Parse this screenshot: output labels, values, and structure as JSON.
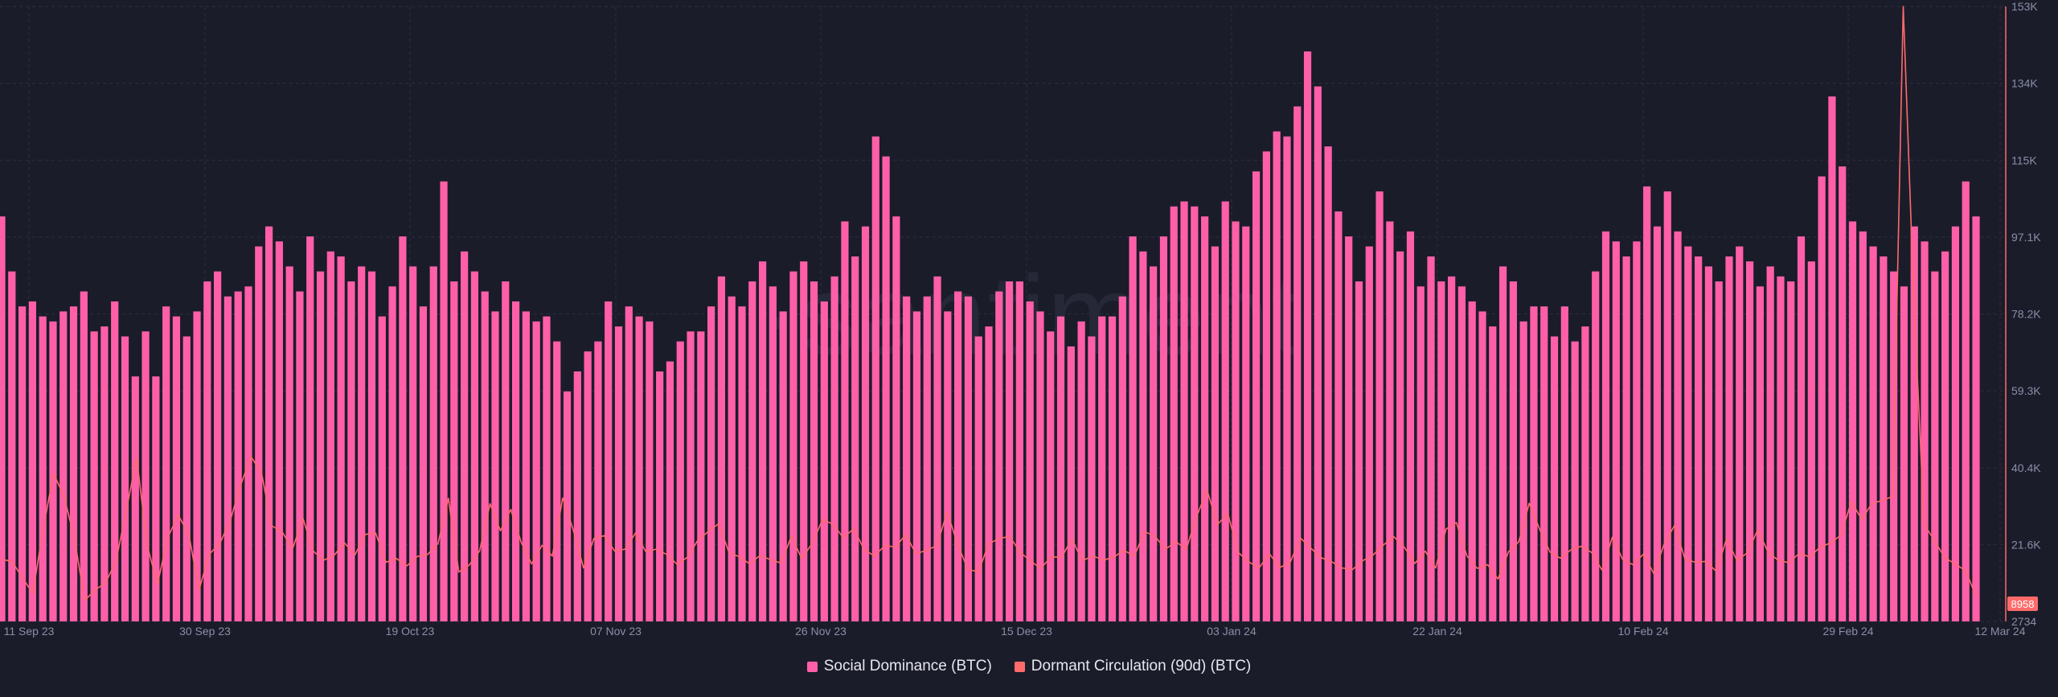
{
  "watermark": "·santiment",
  "colors": {
    "background": "#1b1c2a",
    "grid": "#2c2e40",
    "bars": "#ff5fa8",
    "line": "#ff6b6b",
    "axis_text": "#8a8fa6",
    "badge": "#ff6b6b"
  },
  "legend": [
    {
      "label": "Social Dominance (BTC)",
      "color": "#ff5fa8"
    },
    {
      "label": "Dormant Circulation (90d) (BTC)",
      "color": "#ff6b6b"
    }
  ],
  "last_value_badge": "8958",
  "chart_data": {
    "type": "bar",
    "x_tick_labels": [
      "11 Sep 23",
      "30 Sep 23",
      "19 Oct 23",
      "07 Nov 23",
      "26 Nov 23",
      "15 Dec 23",
      "03 Jan 24",
      "22 Jan 24",
      "10 Feb 24",
      "29 Feb 24",
      "12 Mar 24"
    ],
    "y_tick_labels": [
      "153K",
      "134K",
      "115K",
      "97.1K",
      "78.2K",
      "59.3K",
      "40.4K",
      "21.6K",
      "2734"
    ],
    "right_axis": {
      "min": 2734,
      "max": 153000
    },
    "legend_position": "bottom-center",
    "grid": true,
    "series": [
      {
        "name": "Social Dominance (BTC)",
        "type": "bar",
        "axis": "hidden",
        "values": [
          81,
          70,
          63,
          64,
          61,
          60,
          62,
          63,
          66,
          58,
          59,
          64,
          57,
          49,
          58,
          49,
          63,
          61,
          57,
          62,
          68,
          70,
          65,
          66,
          67,
          75,
          79,
          76,
          71,
          66,
          77,
          70,
          74,
          73,
          68,
          71,
          70,
          61,
          67,
          77,
          71,
          63,
          71,
          88,
          68,
          74,
          70,
          66,
          62,
          68,
          64,
          62,
          60,
          61,
          56,
          46,
          50,
          54,
          56,
          64,
          59,
          63,
          61,
          60,
          50,
          52,
          56,
          58,
          58,
          63,
          69,
          65,
          63,
          68,
          72,
          67,
          62,
          70,
          72,
          68,
          64,
          69,
          80,
          73,
          79,
          97,
          93,
          81,
          65,
          62,
          65,
          69,
          62,
          66,
          65,
          57,
          59,
          66,
          68,
          68,
          64,
          62,
          58,
          61,
          55,
          60,
          57,
          61,
          61,
          65,
          77,
          74,
          71,
          77,
          83,
          84,
          83,
          81,
          75,
          84,
          80,
          79,
          90,
          94,
          98,
          97,
          103,
          114,
          107,
          95,
          82,
          77,
          68,
          75,
          86,
          80,
          74,
          78,
          67,
          73,
          68,
          69,
          67,
          64,
          62,
          59,
          71,
          68,
          60,
          63,
          63,
          57,
          63,
          56,
          59,
          70,
          78,
          76,
          73,
          76,
          87,
          79,
          86,
          78,
          75,
          73,
          71,
          68,
          73,
          75,
          72,
          67,
          71,
          69,
          68,
          77,
          72,
          89,
          105,
          91,
          80,
          78,
          75,
          73,
          70,
          67,
          79,
          76,
          70,
          74,
          79,
          88,
          81
        ]
      },
      {
        "name": "Dormant Circulation (90d) (BTC)",
        "type": "line",
        "axis": "right",
        "values": [
          17900,
          17400,
          13400,
          9600,
          25400,
          38800,
          33400,
          23000,
          7900,
          10400,
          12200,
          17400,
          29900,
          42700,
          21300,
          11900,
          23300,
          28700,
          24100,
          10500,
          19200,
          21800,
          27400,
          36000,
          43000,
          39100,
          26100,
          24600,
          20500,
          27900,
          19900,
          17700,
          18900,
          21900,
          19000,
          24000,
          24300,
          17200,
          18100,
          16300,
          18600,
          19100,
          21800,
          32800,
          14800,
          16500,
          20000,
          31500,
          24900,
          30100,
          22100,
          16800,
          21300,
          18700,
          32900,
          25200,
          15800,
          23000,
          23700,
          19900,
          20400,
          24300,
          19800,
          20400,
          19100,
          16700,
          18400,
          22600,
          24700,
          26600,
          19600,
          18500,
          16800,
          18900,
          17800,
          17000,
          23500,
          18100,
          21800,
          27600,
          26500,
          23200,
          25400,
          20300,
          18700,
          21300,
          20900,
          23900,
          19300,
          20100,
          21300,
          29500,
          21600,
          15400,
          14900,
          21700,
          23000,
          23500,
          19700,
          17500,
          15700,
          18500,
          18400,
          22900,
          17500,
          18800,
          17700,
          18400,
          20100,
          18700,
          24700,
          23500,
          20400,
          22200,
          20400,
          28400,
          34800,
          26400,
          29100,
          19600,
          17300,
          15800,
          19300,
          15900,
          17200,
          23100,
          20600,
          18300,
          17300,
          15800,
          15400,
          17600,
          19000,
          21500,
          23400,
          20800,
          16900,
          19900,
          15800,
          25300,
          26900,
          18800,
          15700,
          16600,
          13100,
          19700,
          22200,
          31600,
          25300,
          19700,
          18200,
          20200,
          21100,
          19600,
          15300,
          23300,
          17900,
          16600,
          19200,
          14400,
          21700,
          26200,
          17900,
          17200,
          17400,
          15000,
          22900,
          17600,
          19500,
          25100,
          19600,
          17600,
          17100,
          19400,
          18500,
          20900,
          21900,
          23800,
          32000,
          27700,
          31600,
          32300,
          33300,
          153000,
          82900,
          26500,
          22500,
          18300,
          16800,
          15100,
          8958
        ]
      }
    ]
  }
}
